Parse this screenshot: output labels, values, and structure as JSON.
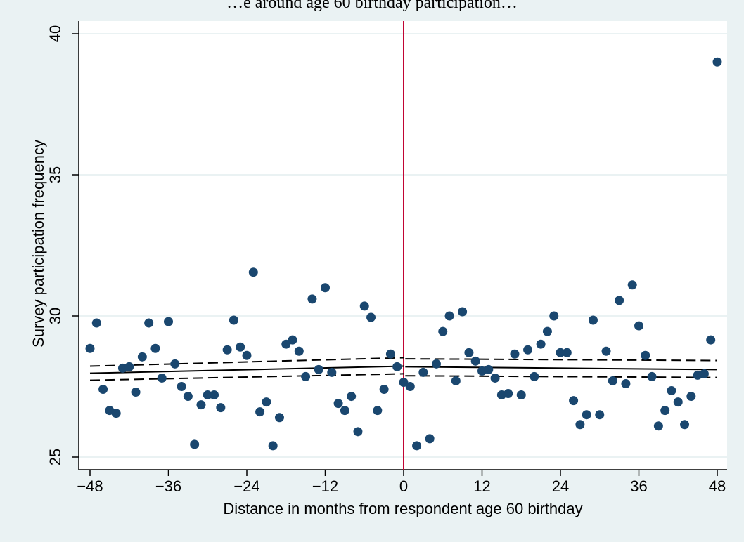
{
  "colors": {
    "outer_background": "#eaf2f3",
    "plot_background": "#ffffff",
    "grid": "#eaf2f3",
    "points": "#1a476f",
    "cutoff_line": "#c10534",
    "fit_line": "#000000"
  },
  "chart_data": {
    "type": "scatter",
    "title": "…e around age 60 birthday participation…",
    "xlabel": "Distance in months from respondent age 60 birthday",
    "ylabel": "Survey participation frequency",
    "xlim": [
      -50,
      50
    ],
    "ylim": [
      24.5,
      40.4
    ],
    "xticks": [
      -48,
      -36,
      -24,
      -12,
      0,
      12,
      24,
      36,
      48
    ],
    "xtick_labels": [
      "−48",
      "−36",
      "−24",
      "−12",
      "0",
      "12",
      "24",
      "36",
      "48"
    ],
    "yticks": [
      25,
      30,
      35,
      40
    ],
    "ytick_labels": [
      "25",
      "30",
      "35",
      "40"
    ],
    "grid": true,
    "cutoff_x": 0,
    "series": [
      {
        "kind": "points",
        "x": [
          -48,
          -47,
          -46,
          -45,
          -44,
          -43,
          -42,
          -41,
          -40,
          -39,
          -38,
          -37,
          -36,
          -35,
          -34,
          -33,
          -32,
          -31,
          -30,
          -29,
          -28,
          -27,
          -26,
          -25,
          -24,
          -23,
          -22,
          -21,
          -20,
          -19,
          -18,
          -17,
          -16,
          -15,
          -14,
          -13,
          -12,
          -11,
          -10,
          -9,
          -8,
          -7,
          -6,
          -5,
          -4,
          -3,
          -2,
          -1,
          0,
          1,
          2,
          3,
          4,
          5,
          6,
          7,
          8,
          9,
          10,
          11,
          12,
          13,
          14,
          15,
          16,
          17,
          18,
          19,
          20,
          21,
          22,
          23,
          24,
          25,
          26,
          27,
          28,
          29,
          30,
          31,
          32,
          33,
          34,
          35,
          36,
          37,
          38,
          39,
          40,
          41,
          42,
          43,
          44,
          45,
          46,
          47,
          48
        ],
        "y": [
          28.85,
          29.75,
          27.4,
          26.65,
          26.55,
          28.15,
          28.2,
          27.3,
          28.55,
          29.75,
          28.85,
          27.8,
          29.8,
          28.3,
          27.5,
          27.15,
          25.45,
          26.85,
          27.2,
          27.2,
          26.75,
          28.8,
          29.85,
          28.9,
          28.6,
          31.55,
          26.6,
          26.95,
          25.4,
          26.4,
          29.0,
          29.15,
          28.75,
          27.85,
          30.6,
          28.1,
          31.0,
          28.0,
          26.9,
          26.65,
          27.15,
          25.9,
          30.35,
          29.95,
          26.65,
          27.4,
          28.65,
          28.2,
          27.65,
          27.5,
          25.4,
          28.0,
          25.65,
          28.3,
          29.45,
          30.0,
          27.7,
          30.15,
          28.7,
          28.4,
          28.05,
          28.1,
          27.8,
          27.2,
          27.25,
          28.65,
          27.2,
          28.8,
          27.85,
          29.0,
          29.45,
          30.0,
          28.7,
          28.7,
          27.0,
          26.15,
          26.5,
          29.85,
          26.5,
          28.75,
          27.7,
          30.55,
          27.6,
          31.1,
          29.65,
          28.6,
          27.85,
          26.1,
          26.65,
          27.35,
          26.95,
          26.15,
          27.15,
          27.9,
          27.95,
          29.15,
          39.0
        ]
      },
      {
        "kind": "fit",
        "side": "left",
        "x": [
          -48,
          0
        ],
        "y": [
          27.97,
          28.22
        ],
        "ci_upper": [
          28.22,
          28.52
        ],
        "ci_lower": [
          27.72,
          27.95
        ]
      },
      {
        "kind": "fit",
        "side": "right",
        "x": [
          0.25,
          48
        ],
        "y": [
          28.2,
          28.1
        ],
        "ci_upper": [
          28.48,
          28.42
        ],
        "ci_lower": [
          27.88,
          27.82
        ]
      }
    ]
  }
}
